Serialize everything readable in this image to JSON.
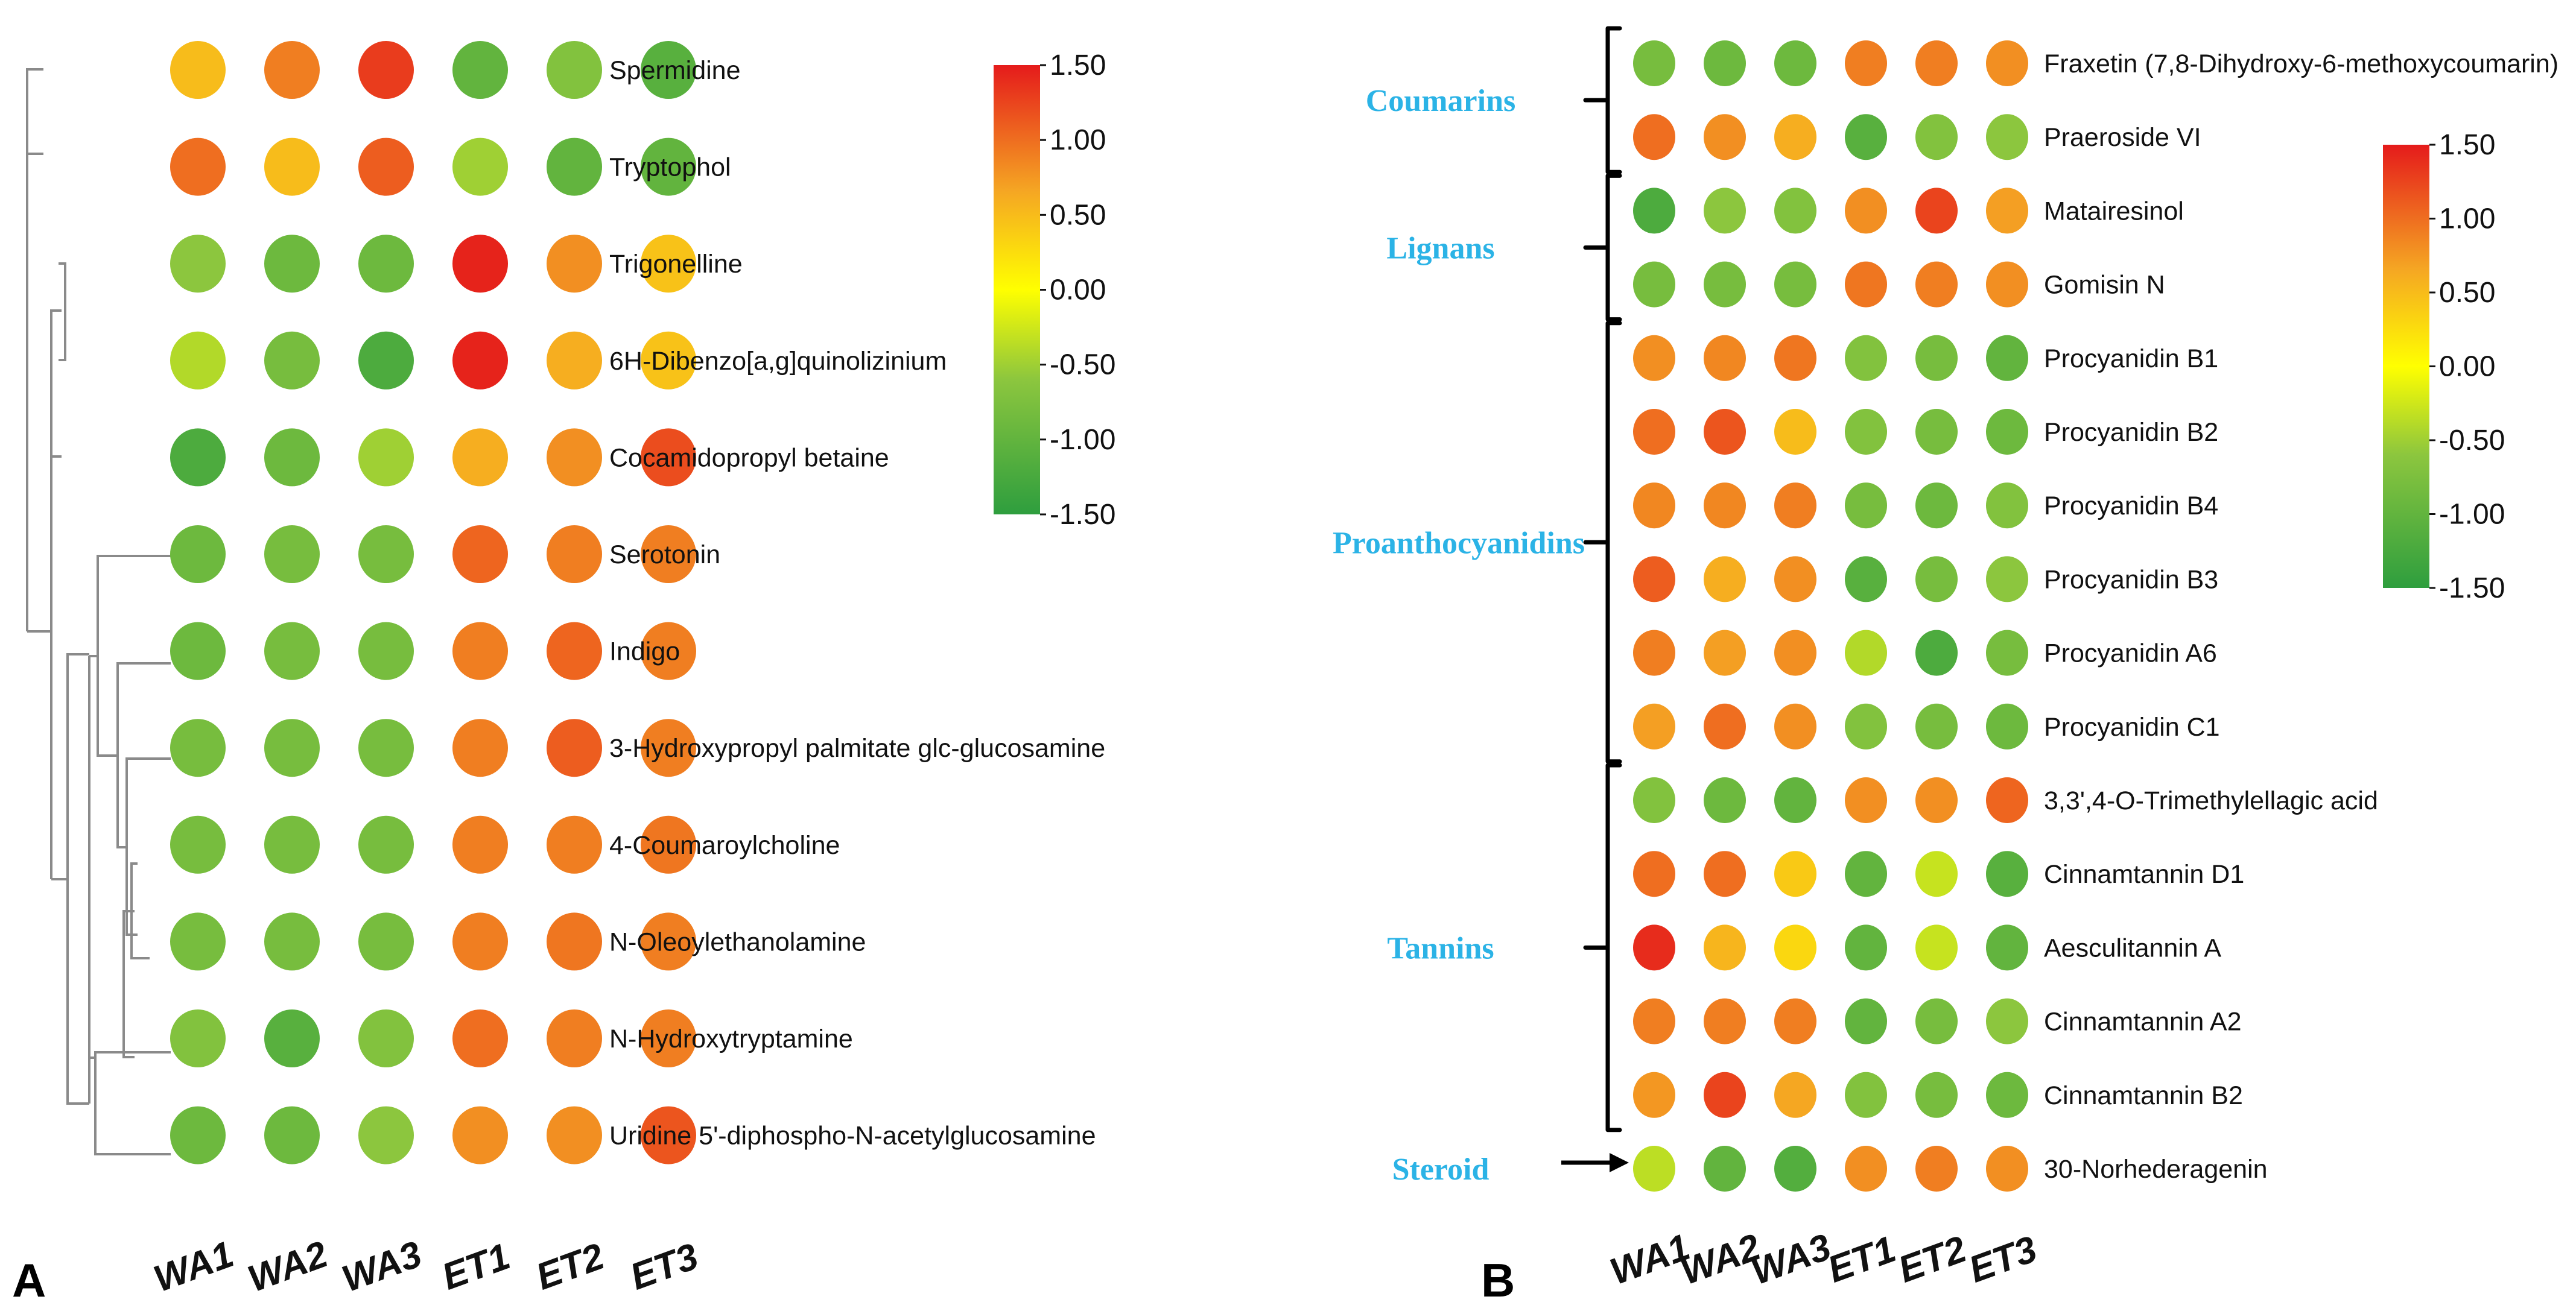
{
  "chart_data": [
    {
      "panel": "A",
      "type": "heatmap",
      "columns": [
        "WA1",
        "WA2",
        "WA3",
        "ET1",
        "ET2",
        "ET3"
      ],
      "rows": [
        {
          "name": "Spermidine",
          "values": [
            0.5,
            0.9,
            1.3,
            -1.0,
            -0.7,
            -1.1
          ]
        },
        {
          "name": "Tryptophol",
          "values": [
            1.0,
            0.5,
            1.1,
            -0.5,
            -1.0,
            -1.0
          ]
        },
        {
          "name": "Trigonelline",
          "values": [
            -0.6,
            -0.9,
            -0.9,
            1.45,
            0.8,
            0.45
          ]
        },
        {
          "name": "6H-Dibenzo[a,g]quinolizinium",
          "values": [
            -0.4,
            -0.8,
            -1.2,
            1.45,
            0.6,
            0.45
          ]
        },
        {
          "name": "Cocamidopropyl betaine",
          "values": [
            -1.2,
            -0.9,
            -0.5,
            0.6,
            0.8,
            1.2
          ]
        },
        {
          "name": "Serotonin",
          "values": [
            -0.9,
            -0.8,
            -0.8,
            1.05,
            0.9,
            0.9
          ]
        },
        {
          "name": "Indigo",
          "values": [
            -0.9,
            -0.8,
            -0.8,
            0.9,
            1.05,
            0.9
          ]
        },
        {
          "name": "3-Hydroxypropyl palmitate glc-glucosamine",
          "values": [
            -0.8,
            -0.8,
            -0.8,
            0.9,
            1.1,
            0.9
          ]
        },
        {
          "name": "4-Coumaroylcholine",
          "values": [
            -0.8,
            -0.8,
            -0.8,
            0.9,
            0.9,
            0.95
          ]
        },
        {
          "name": "N-Oleoylethanolamine",
          "values": [
            -0.8,
            -0.8,
            -0.8,
            0.9,
            0.95,
            0.9
          ]
        },
        {
          "name": "N-Hydroxytryptamine",
          "values": [
            -0.7,
            -1.1,
            -0.7,
            1.0,
            0.9,
            0.9
          ]
        },
        {
          "name": "Uridine 5'-diphospho-N-acetylglucosamine",
          "values": [
            -0.9,
            -0.9,
            -0.6,
            0.8,
            0.8,
            1.15
          ]
        }
      ],
      "color_scale": {
        "min": -1.5,
        "max": 1.5,
        "ticks": [
          "1.50",
          "1.00",
          "0.50",
          "0.00",
          "-0.50",
          "-1.00",
          "-1.50"
        ]
      }
    },
    {
      "panel": "B",
      "type": "heatmap",
      "columns": [
        "WA1",
        "WA2",
        "WA3",
        "ET1",
        "ET2",
        "ET3"
      ],
      "rows": [
        {
          "name": "Fraxetin (7,8-Dihydroxy-6-methoxycoumarin)",
          "values": [
            -0.8,
            -0.9,
            -0.9,
            0.9,
            0.9,
            0.8
          ]
        },
        {
          "name": "Praeroside VI",
          "values": [
            1.0,
            0.8,
            0.6,
            -1.1,
            -0.7,
            -0.6
          ]
        },
        {
          "name": "Matairesinol",
          "values": [
            -1.2,
            -0.6,
            -0.7,
            0.8,
            1.25,
            0.7
          ]
        },
        {
          "name": "Gomisin N",
          "values": [
            -0.8,
            -0.8,
            -0.8,
            0.95,
            0.9,
            0.8
          ]
        },
        {
          "name": "Procyanidin B1",
          "values": [
            0.8,
            0.85,
            0.95,
            -0.7,
            -0.8,
            -1.0
          ]
        },
        {
          "name": "Procyanidin B2",
          "values": [
            1.0,
            1.15,
            0.5,
            -0.7,
            -0.8,
            -0.9
          ]
        },
        {
          "name": "Procyanidin B4",
          "values": [
            0.85,
            0.85,
            0.9,
            -0.8,
            -0.9,
            -0.7
          ]
        },
        {
          "name": "Procyanidin B3",
          "values": [
            1.1,
            0.6,
            0.8,
            -1.1,
            -0.8,
            -0.6
          ]
        },
        {
          "name": "Procyanidin A6",
          "values": [
            0.9,
            0.7,
            0.8,
            -0.4,
            -1.2,
            -0.8
          ]
        },
        {
          "name": "Procyanidin C1",
          "values": [
            0.7,
            1.0,
            0.8,
            -0.7,
            -0.8,
            -0.9
          ]
        },
        {
          "name": "3,3',4-O-Trimethylellagic acid",
          "values": [
            -0.7,
            -0.9,
            -1.0,
            0.8,
            0.8,
            1.05
          ]
        },
        {
          "name": "Cinnamtannin D1",
          "values": [
            1.0,
            1.0,
            0.4,
            -1.0,
            -0.3,
            -1.1
          ]
        },
        {
          "name": "Aesculitannin A",
          "values": [
            1.4,
            0.55,
            0.3,
            -1.0,
            -0.3,
            -1.0
          ]
        },
        {
          "name": "Cinnamtannin A2",
          "values": [
            0.9,
            0.9,
            0.9,
            -1.0,
            -0.8,
            -0.6
          ]
        },
        {
          "name": "Cinnamtannin B2",
          "values": [
            0.75,
            1.25,
            0.65,
            -0.7,
            -0.8,
            -0.9
          ]
        },
        {
          "name": "30-Norhederagenin",
          "values": [
            -0.35,
            -1.0,
            -1.15,
            0.8,
            0.9,
            0.8
          ]
        }
      ],
      "groups": [
        {
          "label": "Coumarins",
          "first_row": 0,
          "last_row": 1
        },
        {
          "label": "Lignans",
          "first_row": 2,
          "last_row": 3
        },
        {
          "label": "Proanthocyanidins",
          "first_row": 4,
          "last_row": 9
        },
        {
          "label": "Tannins",
          "first_row": 10,
          "last_row": 14
        },
        {
          "label": "Steroid",
          "first_row": 15,
          "last_row": 15
        }
      ],
      "color_scale": {
        "min": -1.5,
        "max": 1.5,
        "ticks": [
          "1.50",
          "1.00",
          "0.50",
          "0.00",
          "-0.50",
          "-1.00",
          "-1.50"
        ]
      }
    }
  ],
  "colors": {
    "low": "#2e9e3e",
    "mid": "#ffff00",
    "high": "#e51b1b",
    "category": "#2bb3e6",
    "dendrogram": "#8a8a8a"
  }
}
